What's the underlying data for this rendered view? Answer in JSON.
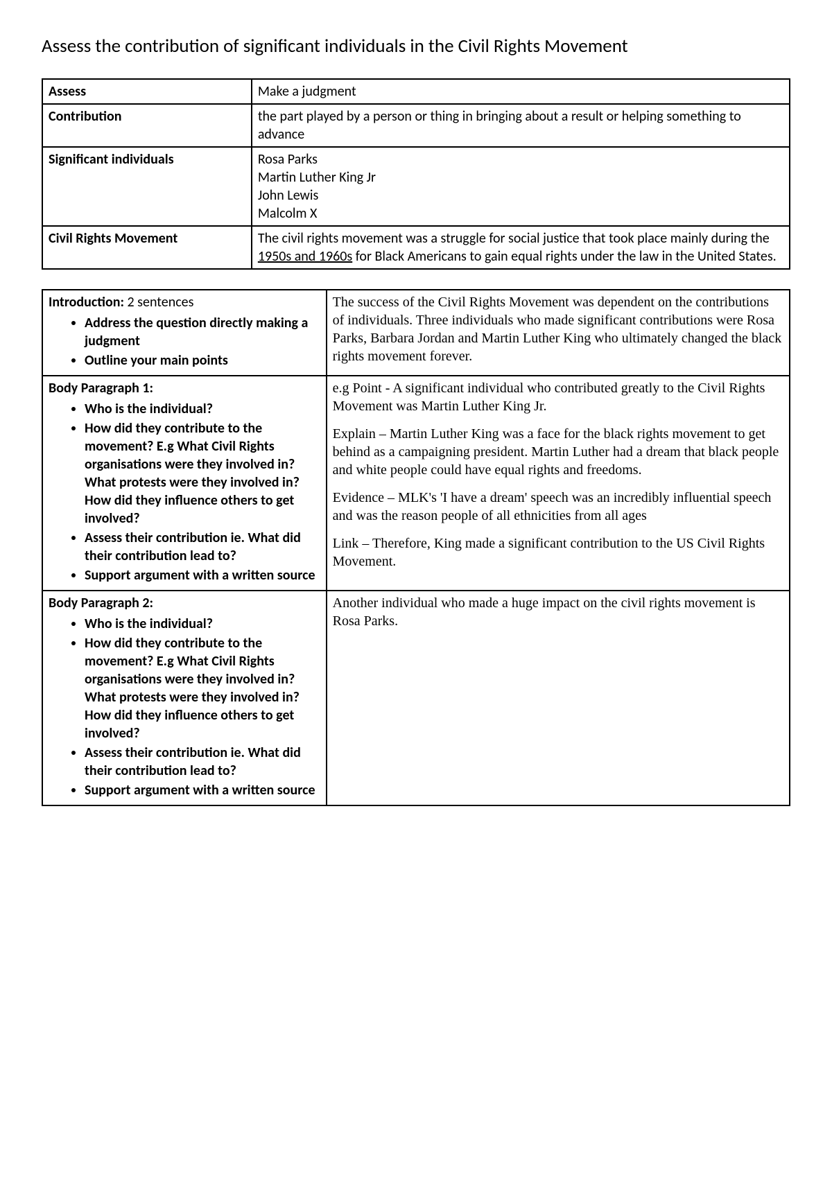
{
  "title": "Assess the contribution of significant individuals in the Civil Rights Movement",
  "definitions": {
    "rows": [
      {
        "label": "Assess",
        "value_html": "Make a judgment"
      },
      {
        "label": "Contribution",
        "value_html": "the part played by a person or thing in bringing about a result or helping something to advance"
      },
      {
        "label": "Significant individuals",
        "value_lines": [
          "Rosa Parks",
          "Martin Luther King Jr",
          "John Lewis",
          "Malcolm X"
        ]
      },
      {
        "label": "Civil Rights Movement",
        "value_html": "The civil rights movement was a struggle for social justice that took place mainly during the <span class=\"underline\">1950s and 1960s</span> for Black Americans to gain equal rights under the law in the United States."
      }
    ]
  },
  "outline": {
    "rows": [
      {
        "left_heading": "Introduction:",
        "left_heading_suffix": " 2 sentences",
        "left_bullets": [
          "Address the question directly making a judgment",
          "Outline your main points"
        ],
        "right_paras": [
          "The success of the Civil Rights Movement was dependent on the contributions of individuals.  Three individuals who made significant contributions were Rosa Parks, Barbara Jordan and Martin Luther King who ultimately changed the black rights movement forever."
        ]
      },
      {
        "left_heading": "Body Paragraph 1:",
        "left_heading_suffix": "",
        "left_bullets": [
          "Who is the individual?",
          "How did they contribute to the movement? E.g What Civil Rights organisations were they involved in? What protests were they involved in? How did they influence others to get involved?",
          "Assess their contribution ie. What did their contribution lead to?",
          "Support argument with a written source"
        ],
        "right_paras": [
          "e.g Point -  A significant individual who contributed greatly to the Civil Rights Movement was Martin Luther King Jr.",
          "Explain – Martin Luther King was a face for the black rights movement to get behind as a campaigning president. Martin Luther had a dream that black people and white people could have equal rights and freedoms.",
          "Evidence – MLK's 'I have a dream' speech was an incredibly influential speech and was the reason people of all ethnicities from all ages",
          "Link – Therefore, King made a significant contribution to the US Civil Rights Movement."
        ]
      },
      {
        "left_heading": "Body Paragraph 2:",
        "left_heading_suffix": "",
        "left_bullets": [
          "Who is the individual?",
          "How did they contribute to the movement? E.g What Civil Rights organisations were they involved in? What protests were they involved in? How did they influence others to get involved?",
          "Assess their contribution ie. What did their contribution lead to?",
          "Support argument with a written source"
        ],
        "right_paras": [
          "Another individual who made a huge impact on the civil rights movement is Rosa Parks."
        ]
      }
    ]
  }
}
